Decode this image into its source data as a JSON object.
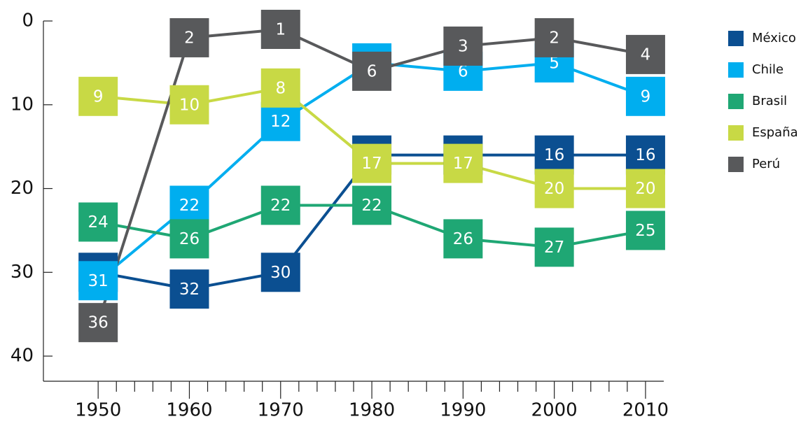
{
  "chart_data": {
    "type": "line",
    "x": [
      1950,
      1960,
      1970,
      1980,
      1990,
      2000,
      2010
    ],
    "series": [
      {
        "name": "México",
        "color": "#0b4f91",
        "values": [
          30,
          32,
          30,
          16,
          16,
          16,
          16
        ]
      },
      {
        "name": "Chile",
        "color": "#00aeef",
        "values": [
          31,
          22,
          12,
          5,
          6,
          5,
          9
        ]
      },
      {
        "name": "Brasil",
        "color": "#1fa774",
        "values": [
          24,
          26,
          22,
          22,
          26,
          27,
          25
        ]
      },
      {
        "name": "España",
        "color": "#c8d945",
        "values": [
          9,
          10,
          8,
          17,
          17,
          20,
          20
        ]
      },
      {
        "name": "Perú",
        "color": "#58595b",
        "values": [
          36,
          2,
          1,
          6,
          3,
          2,
          4
        ]
      }
    ],
    "xlim": [
      1944,
      2012
    ],
    "xticks": [
      1950,
      1960,
      1970,
      1980,
      1990,
      2000,
      2010
    ],
    "xminor_ticks": [
      1952,
      1954,
      1956,
      1958,
      1962,
      1964,
      1966,
      1968,
      1972,
      1974,
      1976,
      1978,
      1982,
      1984,
      1986,
      1988,
      1992,
      1994,
      1996,
      1998,
      2002,
      2004,
      2006,
      2008
    ],
    "ylim": [
      43,
      0
    ],
    "yticks": [
      0,
      10,
      20,
      30,
      40
    ],
    "legend": "right"
  }
}
